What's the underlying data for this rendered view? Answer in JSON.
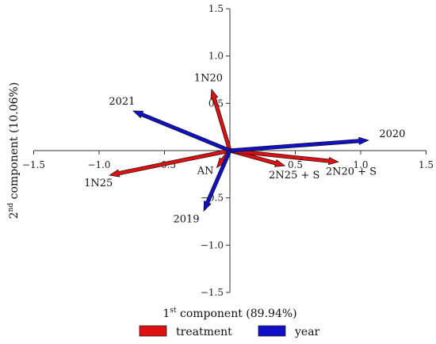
{
  "chart_data": {
    "type": "biplot",
    "xlabel": {
      "prefix": "1",
      "sup": "st",
      "rest": " component (89.94%)"
    },
    "ylabel": {
      "prefix": "2",
      "sup": "nd",
      "rest": " component (10.06%)"
    },
    "xlim": [
      -1.5,
      1.5
    ],
    "ylim": [
      -1.5,
      1.5
    ],
    "xticks": [
      "-1.5",
      "-1.0",
      "-0.5",
      "0.5",
      "1.0",
      "1.5"
    ],
    "yticks": [
      "1.5",
      "1.0",
      "0.5",
      "-0.5",
      "-1.0",
      "-1.5"
    ],
    "grid": false,
    "legend_position": "bottom",
    "series": [
      {
        "name": "treatment",
        "color": "#e01010",
        "vectors": [
          {
            "label": "1N20",
            "x": -0.14,
            "y": 0.65
          },
          {
            "label": "1N25",
            "x": -0.92,
            "y": -0.26
          },
          {
            "label": "AN",
            "x": -0.1,
            "y": -0.18
          },
          {
            "label": "2N25 + S",
            "x": 0.42,
            "y": -0.16
          },
          {
            "label": "2N20 + S",
            "x": 0.83,
            "y": -0.12
          }
        ]
      },
      {
        "name": "year",
        "color": "#1010c8",
        "vectors": [
          {
            "label": "2020",
            "x": 1.06,
            "y": 0.11
          },
          {
            "label": "2021",
            "x": -0.74,
            "y": 0.42
          },
          {
            "label": "2019",
            "x": -0.2,
            "y": -0.64
          }
        ]
      }
    ]
  }
}
